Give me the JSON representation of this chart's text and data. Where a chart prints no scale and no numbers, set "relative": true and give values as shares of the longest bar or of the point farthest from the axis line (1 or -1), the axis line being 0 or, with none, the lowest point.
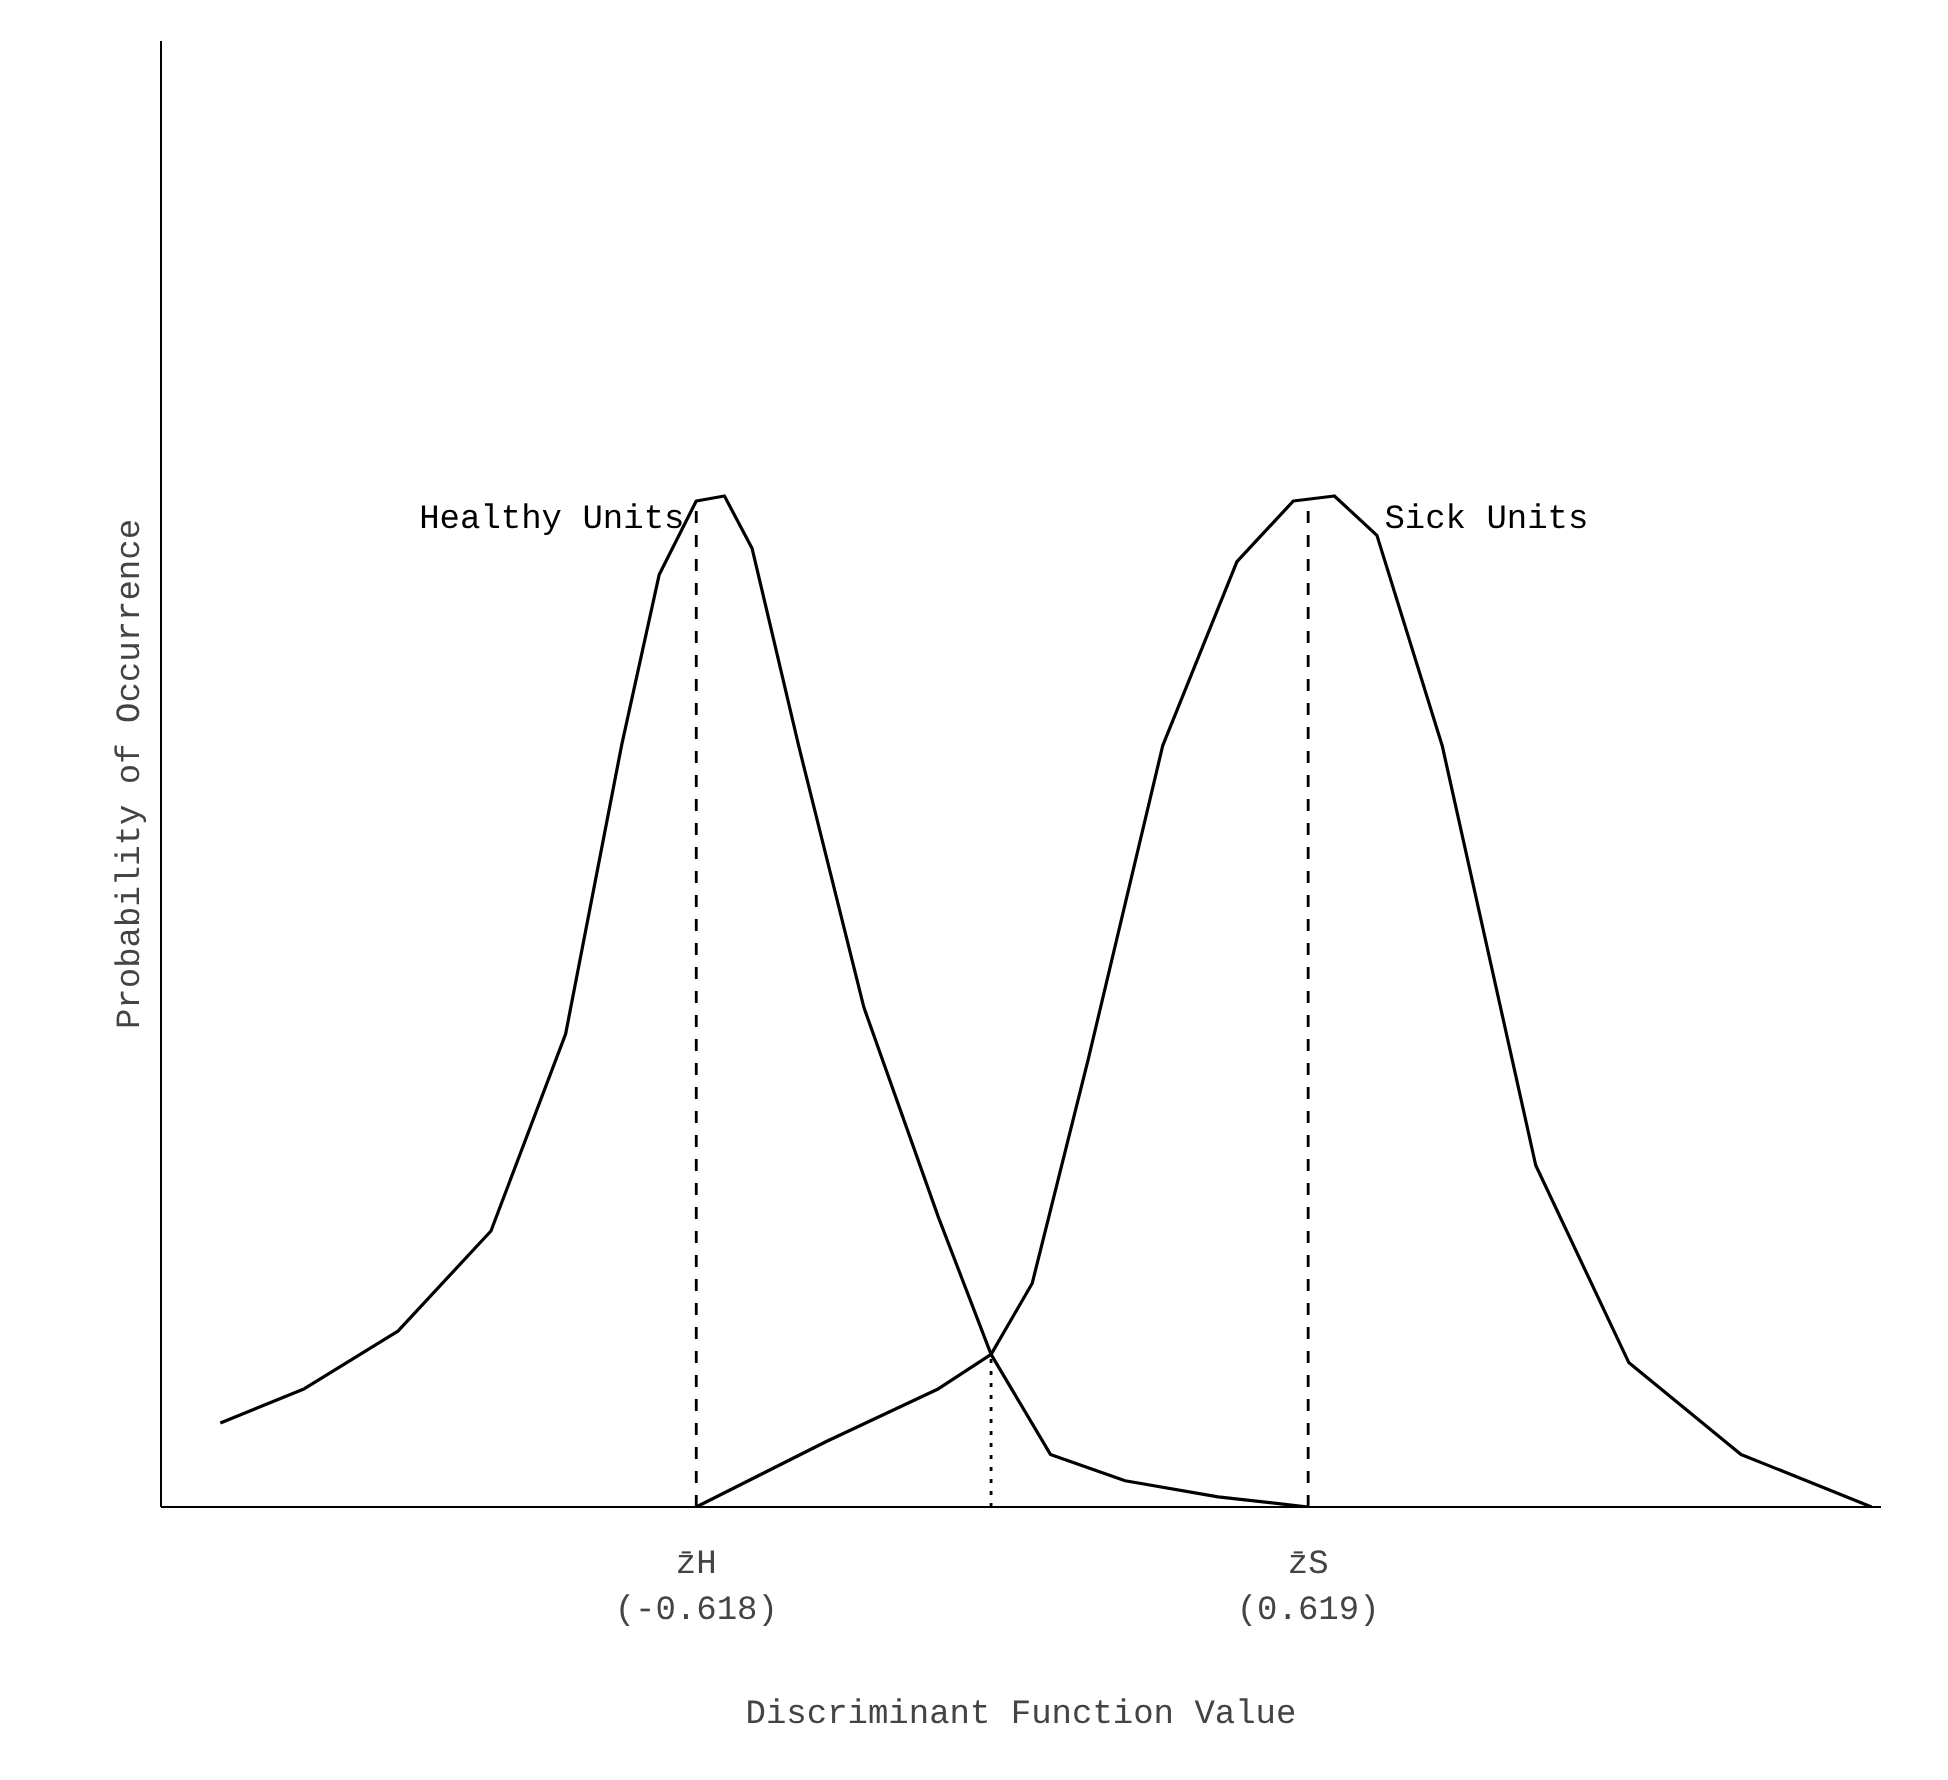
{
  "chart_data": {
    "type": "line",
    "relative": true,
    "xlabel": "Discriminant Function Value",
    "ylabel": "Probability of Occurrence",
    "xlim": [
      -1.7,
      1.777
    ],
    "xticks": [
      {
        "value": -0.618,
        "label": "z̄H\n(-0.618)"
      },
      {
        "value": 0.619,
        "label": "z̄S\n(0.619)"
      }
    ],
    "tick_labels": "x",
    "grid": false,
    "marker": "none",
    "line_style": "solid",
    "series": [
      {
        "name": "Healthy Units",
        "color": "#000000",
        "x": [
          -1.58,
          -1.41,
          -1.221,
          -1.033,
          -0.882,
          -0.769,
          -0.693,
          -0.618,
          -0.561,
          -0.505,
          -0.411,
          -0.279,
          -0.128,
          -0.022,
          0.098,
          0.249,
          0.437,
          0.619
        ],
        "values": [
          0.083,
          0.117,
          0.174,
          0.273,
          0.468,
          0.753,
          0.922,
          0.995,
          1.0,
          0.948,
          0.753,
          0.494,
          0.286,
          0.151,
          0.052,
          0.026,
          0.01,
          0
        ]
      },
      {
        "name": "Sick Units",
        "color": "#000000",
        "x": [
          -0.618,
          -0.354,
          -0.128,
          -0.022,
          0.061,
          0.174,
          0.325,
          0.475,
          0.589,
          0.672,
          0.758,
          0.89,
          1.079,
          1.267,
          1.494,
          1.758
        ],
        "values": [
          0,
          0.065,
          0.117,
          0.151,
          0.221,
          0.442,
          0.753,
          0.935,
          0.995,
          1.0,
          0.961,
          0.753,
          0.338,
          0.143,
          0.052,
          0
        ]
      }
    ],
    "ref_lines": [
      {
        "axis": "x",
        "value": -0.618,
        "line_style": "dashed",
        "color": "#000000"
      },
      {
        "axis": "x",
        "value": 0.619,
        "line_style": "dashed",
        "color": "#000000"
      },
      {
        "axis": "x",
        "value": -0.022,
        "line_style": "dotted",
        "color": "#000000"
      }
    ]
  }
}
